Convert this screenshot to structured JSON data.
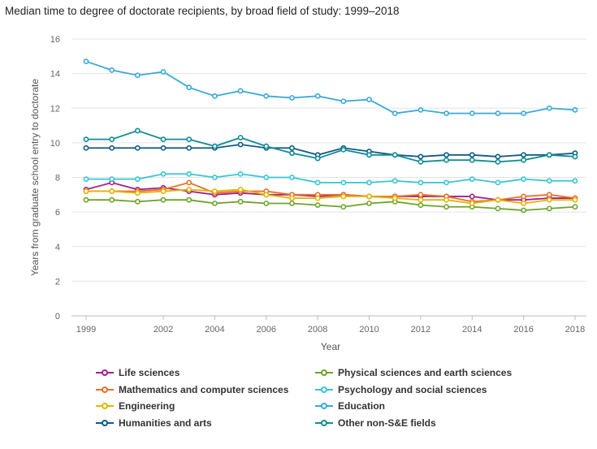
{
  "chart_data": {
    "type": "line",
    "title": "Median time to degree of doctorate recipients, by broad field of study: 1999–2018",
    "xlabel": "Year",
    "ylabel": "Years from graduate school entry to doctorate",
    "ylim": [
      0,
      16
    ],
    "yticks": [
      0,
      2,
      4,
      6,
      8,
      10,
      12,
      14,
      16
    ],
    "xticks": [
      1999,
      2002,
      2004,
      2006,
      2008,
      2010,
      2012,
      2014,
      2016,
      2018
    ],
    "grid": true,
    "legend_position": "bottom",
    "x": [
      1999,
      2000,
      2001,
      2002,
      2003,
      2004,
      2005,
      2006,
      2007,
      2008,
      2009,
      2010,
      2011,
      2012,
      2013,
      2014,
      2015,
      2016,
      2017,
      2018
    ],
    "series": [
      {
        "name": "Life sciences",
        "color": "#a3218a",
        "values": [
          7.3,
          7.7,
          7.3,
          7.4,
          7.2,
          7.0,
          7.1,
          7.0,
          7.0,
          6.9,
          7.0,
          6.9,
          6.9,
          6.9,
          6.9,
          6.9,
          6.7,
          6.7,
          6.8,
          6.8
        ]
      },
      {
        "name": "Physical sciences and earth sciences",
        "color": "#6ea32c",
        "values": [
          6.7,
          6.7,
          6.6,
          6.7,
          6.7,
          6.5,
          6.6,
          6.5,
          6.5,
          6.4,
          6.3,
          6.5,
          6.6,
          6.4,
          6.3,
          6.3,
          6.2,
          6.1,
          6.2,
          6.3
        ]
      },
      {
        "name": "Mathematics and computer sciences",
        "color": "#e8702a",
        "values": [
          7.2,
          7.2,
          7.2,
          7.3,
          7.7,
          7.1,
          7.2,
          7.2,
          7.0,
          7.0,
          7.0,
          6.9,
          6.9,
          7.0,
          6.9,
          6.6,
          6.7,
          6.9,
          7.0,
          6.8
        ]
      },
      {
        "name": "Psychology and social sciences",
        "color": "#36c6d3",
        "values": [
          7.9,
          7.9,
          7.9,
          8.2,
          8.2,
          8.0,
          8.2,
          8.0,
          8.0,
          7.7,
          7.7,
          7.7,
          7.8,
          7.7,
          7.7,
          7.9,
          7.7,
          7.9,
          7.8,
          7.8
        ]
      },
      {
        "name": "Engineering",
        "color": "#e3b505",
        "values": [
          7.2,
          7.2,
          7.1,
          7.2,
          7.3,
          7.2,
          7.3,
          7.0,
          6.8,
          6.8,
          6.9,
          6.9,
          6.8,
          6.7,
          6.7,
          6.5,
          6.7,
          6.5,
          6.7,
          6.7
        ]
      },
      {
        "name": "Education",
        "color": "#3ba9d6",
        "values": [
          14.7,
          14.2,
          13.9,
          14.1,
          13.2,
          12.7,
          13.0,
          12.7,
          12.6,
          12.7,
          12.4,
          12.5,
          11.7,
          11.9,
          11.7,
          11.7,
          11.7,
          11.7,
          12.0,
          11.9
        ]
      },
      {
        "name": "Humanities and arts",
        "color": "#0f5a86",
        "values": [
          9.7,
          9.7,
          9.7,
          9.7,
          9.7,
          9.7,
          9.9,
          9.7,
          9.7,
          9.3,
          9.7,
          9.5,
          9.3,
          9.2,
          9.3,
          9.3,
          9.2,
          9.3,
          9.3,
          9.4
        ]
      },
      {
        "name": "Other non-S&E fields",
        "color": "#118d95",
        "values": [
          10.2,
          10.2,
          10.7,
          10.2,
          10.2,
          9.8,
          10.3,
          9.8,
          9.4,
          9.1,
          9.6,
          9.3,
          9.3,
          8.9,
          9.0,
          9.0,
          8.9,
          9.0,
          9.3,
          9.2
        ]
      }
    ]
  }
}
